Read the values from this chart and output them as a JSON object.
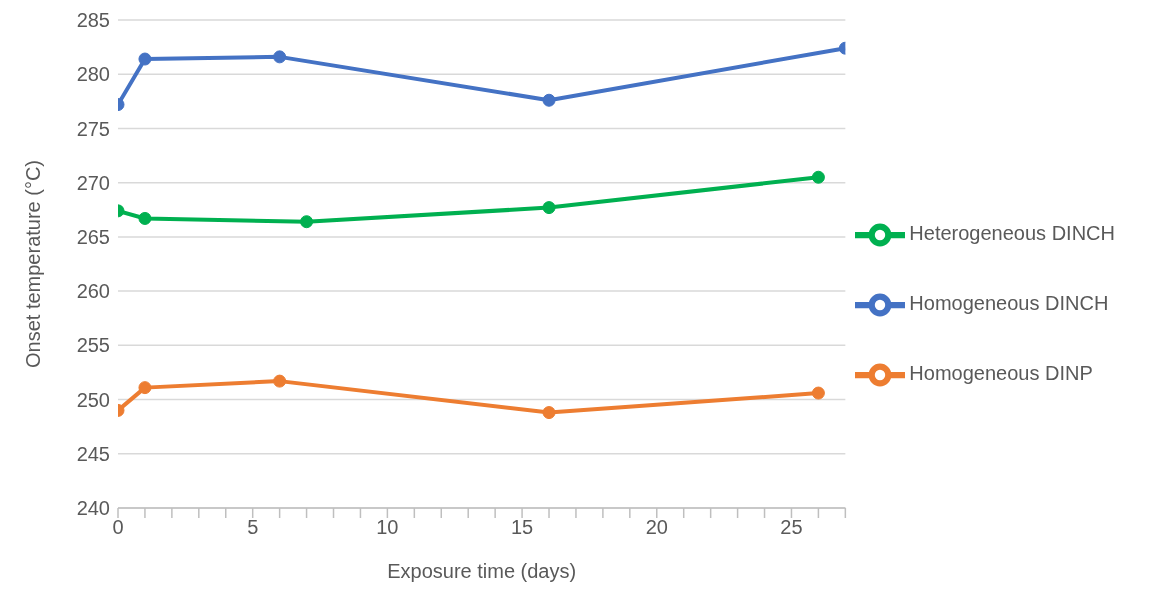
{
  "chart_data": {
    "type": "line",
    "xlabel": "Exposure time (days)",
    "ylabel": "Onset temperature (°C)",
    "xlim": [
      0,
      27
    ],
    "xticks": [
      0,
      {
        "value": 1,
        "label": null
      },
      {
        "value": 2,
        "label": null
      },
      {
        "value": 3,
        "label": null
      },
      {
        "value": 4,
        "label": null
      },
      5,
      {
        "value": 6,
        "label": null
      },
      {
        "value": 7,
        "label": null
      },
      {
        "value": 8,
        "label": null
      },
      {
        "value": 9,
        "label": null
      },
      10,
      {
        "value": 11,
        "label": null
      },
      {
        "value": 12,
        "label": null
      },
      {
        "value": 13,
        "label": null
      },
      {
        "value": 14,
        "label": null
      },
      15,
      {
        "value": 16,
        "label": null
      },
      {
        "value": 17,
        "label": null
      },
      {
        "value": 18,
        "label": null
      },
      {
        "value": 19,
        "label": null
      },
      20,
      {
        "value": 21,
        "label": null
      },
      {
        "value": 22,
        "label": null
      },
      {
        "value": 23,
        "label": null
      },
      {
        "value": 24,
        "label": null
      },
      25,
      {
        "value": 26,
        "label": null
      },
      {
        "value": 27,
        "label": null
      }
    ],
    "ylim": [
      240,
      285
    ],
    "yticks": [
      240,
      245,
      250,
      255,
      260,
      265,
      270,
      275,
      280,
      285
    ],
    "grid": "y",
    "legend": "right",
    "marker": "circle",
    "line_style": "solid",
    "series": [
      {
        "name": "Homogeneous DINCH",
        "color": "#4472c4",
        "x": [
          0,
          1,
          6,
          16,
          27
        ],
        "values": [
          277.2,
          281.4,
          281.6,
          277.6,
          282.4
        ]
      },
      {
        "name": "Homogeneous DINP",
        "color": "#ed7d31",
        "x": [
          0,
          1,
          6,
          16,
          26
        ],
        "values": [
          249.0,
          251.1,
          251.7,
          248.8,
          250.6
        ]
      },
      {
        "name": "Heterogeneous DINCH",
        "color": "#00b050",
        "x": [
          0,
          1,
          7,
          16,
          26
        ],
        "values": [
          267.4,
          266.7,
          266.4,
          267.7,
          270.5
        ]
      }
    ]
  }
}
